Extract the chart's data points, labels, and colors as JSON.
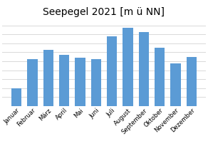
{
  "title": "Seepegel 2021 [m ü NN]",
  "categories": [
    "Januar",
    "Februar",
    "März",
    "April",
    "Mai",
    "Juni",
    "Juli",
    "August",
    "September",
    "Oktober",
    "November",
    "Dezember"
  ],
  "values": [
    406.2,
    406.85,
    407.05,
    406.95,
    406.88,
    406.85,
    407.35,
    407.55,
    407.45,
    407.1,
    406.75,
    406.9
  ],
  "bar_color": "#5b9bd5",
  "background_color": "#ffffff",
  "ylim_min": 405.8,
  "ylim_max": 407.75,
  "grid_color": "#d9d9d9",
  "title_fontsize": 10,
  "tick_fontsize": 6,
  "bar_width": 0.65
}
